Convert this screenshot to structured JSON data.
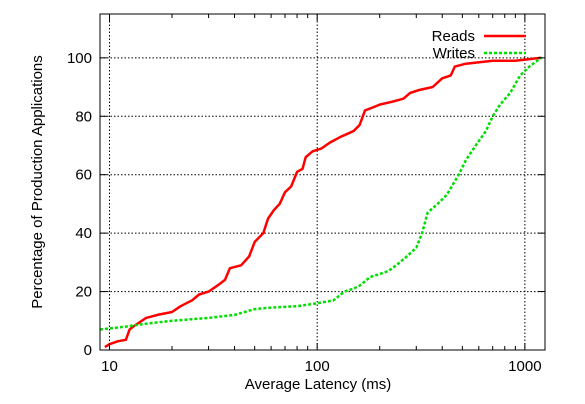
{
  "chart_data": {
    "type": "line",
    "xlabel": "Average Latency (ms)",
    "ylabel": "Percentage of Production Applications",
    "xscale": "log",
    "xlim": [
      9,
      1250
    ],
    "ylim": [
      0,
      115
    ],
    "x_ticks": [
      10,
      100,
      1000
    ],
    "x_tick_labels": [
      "10",
      "100",
      "1000"
    ],
    "y_ticks": [
      0,
      20,
      40,
      60,
      80,
      100
    ],
    "y_tick_labels": [
      "0",
      "20",
      "40",
      "60",
      "80",
      "100"
    ],
    "grid": true,
    "legend_position": "top-right",
    "series": [
      {
        "name": "Reads",
        "color": "#ff0000",
        "style": "solid",
        "points": [
          [
            9.5,
            1
          ],
          [
            10,
            2
          ],
          [
            11,
            3
          ],
          [
            12,
            3.5
          ],
          [
            12.5,
            7
          ],
          [
            13,
            8
          ],
          [
            15,
            11
          ],
          [
            17,
            12
          ],
          [
            20,
            13
          ],
          [
            22,
            15
          ],
          [
            25,
            17
          ],
          [
            27,
            19
          ],
          [
            30,
            20
          ],
          [
            33,
            22
          ],
          [
            36,
            24
          ],
          [
            38,
            28
          ],
          [
            43,
            29
          ],
          [
            47,
            32
          ],
          [
            50,
            37
          ],
          [
            55,
            40
          ],
          [
            58,
            45
          ],
          [
            62,
            48
          ],
          [
            66,
            50
          ],
          [
            70,
            54
          ],
          [
            75,
            56
          ],
          [
            80,
            61
          ],
          [
            85,
            62
          ],
          [
            88,
            66
          ],
          [
            95,
            68
          ],
          [
            105,
            69
          ],
          [
            115,
            71
          ],
          [
            130,
            73
          ],
          [
            140,
            74
          ],
          [
            150,
            75
          ],
          [
            160,
            77
          ],
          [
            170,
            82
          ],
          [
            185,
            83
          ],
          [
            200,
            84
          ],
          [
            230,
            85
          ],
          [
            260,
            86
          ],
          [
            280,
            88
          ],
          [
            310,
            89
          ],
          [
            360,
            90
          ],
          [
            400,
            93
          ],
          [
            440,
            94
          ],
          [
            460,
            97
          ],
          [
            520,
            98
          ],
          [
            700,
            99
          ],
          [
            900,
            99
          ],
          [
            1200,
            100
          ]
        ]
      },
      {
        "name": "Writes",
        "color": "#00dd00",
        "style": "dashed",
        "points": [
          [
            9,
            7
          ],
          [
            12,
            8
          ],
          [
            15,
            9
          ],
          [
            20,
            10
          ],
          [
            30,
            11
          ],
          [
            40,
            12
          ],
          [
            50,
            14
          ],
          [
            60,
            14.5
          ],
          [
            80,
            15
          ],
          [
            100,
            16
          ],
          [
            120,
            17
          ],
          [
            135,
            20
          ],
          [
            150,
            21
          ],
          [
            160,
            22
          ],
          [
            180,
            25
          ],
          [
            200,
            26
          ],
          [
            220,
            27
          ],
          [
            240,
            29
          ],
          [
            270,
            32
          ],
          [
            300,
            35
          ],
          [
            320,
            40
          ],
          [
            340,
            47
          ],
          [
            380,
            50
          ],
          [
            420,
            53
          ],
          [
            480,
            60
          ],
          [
            520,
            65
          ],
          [
            580,
            70
          ],
          [
            650,
            75
          ],
          [
            700,
            80
          ],
          [
            760,
            84
          ],
          [
            850,
            88
          ],
          [
            950,
            94
          ],
          [
            1050,
            97
          ],
          [
            1200,
            100
          ]
        ]
      }
    ]
  }
}
